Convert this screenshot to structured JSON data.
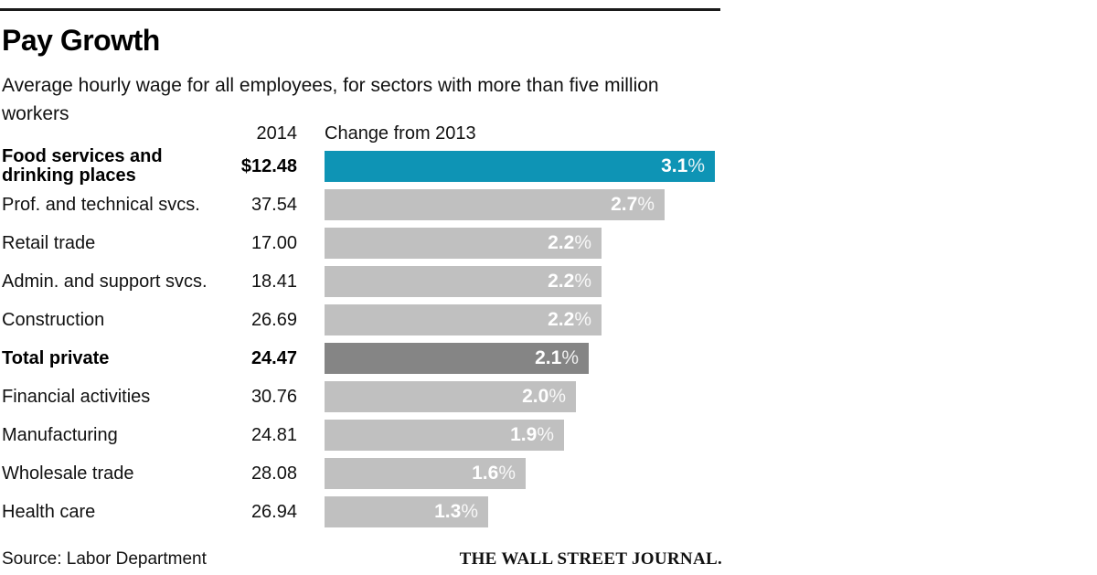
{
  "header": {
    "title": "Pay Growth",
    "subtitle": "Average hourly wage for all employees, for sectors with more than five million workers"
  },
  "columns": {
    "wage_header": "2014",
    "change_header": "Change from 2013"
  },
  "rows": [
    {
      "label": "Food services and\ndrinking places",
      "wage": "$12.48",
      "pct": 3.1,
      "tone": "highlight",
      "bold": true
    },
    {
      "label": "Prof. and technical svcs.",
      "wage": "37.54",
      "pct": 2.7,
      "tone": "normal",
      "bold": false
    },
    {
      "label": "Retail trade",
      "wage": "17.00",
      "pct": 2.2,
      "tone": "normal",
      "bold": false
    },
    {
      "label": "Admin. and support svcs.",
      "wage": "18.41",
      "pct": 2.2,
      "tone": "normal",
      "bold": false
    },
    {
      "label": "Construction",
      "wage": "26.69",
      "pct": 2.2,
      "tone": "normal",
      "bold": false
    },
    {
      "label": "Total private",
      "wage": "24.47",
      "pct": 2.1,
      "tone": "total",
      "bold": true
    },
    {
      "label": "Financial activities",
      "wage": "30.76",
      "pct": 2.0,
      "tone": "normal",
      "bold": false
    },
    {
      "label": "Manufacturing",
      "wage": "24.81",
      "pct": 1.9,
      "tone": "normal",
      "bold": false
    },
    {
      "label": "Wholesale trade",
      "wage": "28.08",
      "pct": 1.6,
      "tone": "normal",
      "bold": false
    },
    {
      "label": "Health care",
      "wage": "26.94",
      "pct": 1.3,
      "tone": "normal",
      "bold": false
    }
  ],
  "footer": {
    "source": "Source: Labor Department",
    "brand": "THE WALL STREET JOURNAL."
  },
  "colors": {
    "highlight": "#0e94b5",
    "bar": "#c0c0c0",
    "total": "#858585",
    "rule": "#1a1a1a",
    "bar_label": "#ffffff"
  },
  "chart_data": {
    "type": "bar",
    "title": "Pay Growth",
    "subtitle": "Average hourly wage for all employees, for sectors with more than five million workers",
    "orientation": "horizontal",
    "categories": [
      "Food services and drinking places",
      "Prof. and technical svcs.",
      "Retail trade",
      "Admin. and support svcs.",
      "Construction",
      "Total private",
      "Financial activities",
      "Manufacturing",
      "Wholesale trade",
      "Health care"
    ],
    "series": [
      {
        "name": "2014 average hourly wage ($)",
        "values": [
          12.48,
          37.54,
          17.0,
          18.41,
          26.69,
          24.47,
          30.76,
          24.81,
          28.08,
          26.94
        ]
      },
      {
        "name": "Change from 2013 (%)",
        "values": [
          3.1,
          2.7,
          2.2,
          2.2,
          2.2,
          2.1,
          2.0,
          1.9,
          1.6,
          1.3
        ]
      }
    ],
    "bar_series_plotted": "Change from 2013 (%)",
    "value_label_format": "0.0%",
    "xlim": [
      0,
      3.1
    ],
    "grid": false,
    "legend_position": "none",
    "highlighted_category": "Food services and drinking places",
    "emphasized_category": "Total private",
    "source": "Source: Labor Department"
  }
}
